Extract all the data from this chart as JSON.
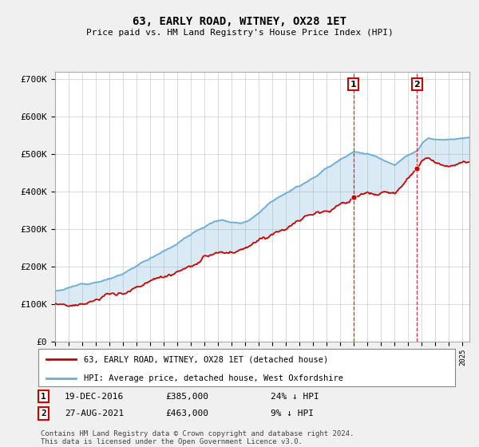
{
  "title": "63, EARLY ROAD, WITNEY, OX28 1ET",
  "subtitle": "Price paid vs. HM Land Registry's House Price Index (HPI)",
  "ylabel_ticks": [
    "£0",
    "£100K",
    "£200K",
    "£300K",
    "£400K",
    "£500K",
    "£600K",
    "£700K"
  ],
  "ytick_vals": [
    0,
    100000,
    200000,
    300000,
    400000,
    500000,
    600000,
    700000
  ],
  "ylim": [
    0,
    720000
  ],
  "sale1_date": "19-DEC-2016",
  "sale1_price": 385000,
  "sale1_hpi": "24% ↓ HPI",
  "sale1_year": 2016.96,
  "sale2_date": "27-AUG-2021",
  "sale2_price": 463000,
  "sale2_hpi": "9% ↓ HPI",
  "sale2_year": 2021.65,
  "legend_label1": "63, EARLY ROAD, WITNEY, OX28 1ET (detached house)",
  "legend_label2": "HPI: Average price, detached house, West Oxfordshire",
  "footnote": "Contains HM Land Registry data © Crown copyright and database right 2024.\nThis data is licensed under the Open Government Licence v3.0.",
  "hpi_color": "#6baed6",
  "price_color": "#cc0000",
  "vline_color": "#cc0000",
  "background_color": "#f0f0f0",
  "plot_bg": "#ffffff"
}
